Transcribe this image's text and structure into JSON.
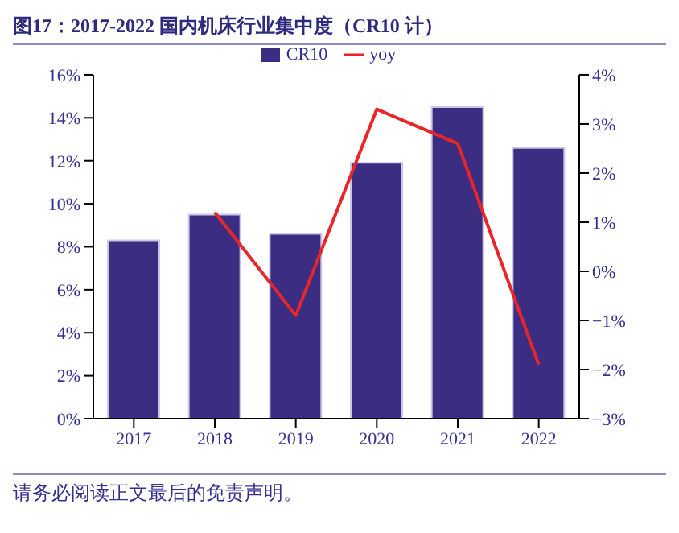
{
  "chart_data": {
    "type": "bar",
    "title": "图17：2017-2022 国内机床行业集中度（CR10 计）",
    "categories": [
      "2017",
      "2018",
      "2019",
      "2020",
      "2021",
      "2022"
    ],
    "series": [
      {
        "name": "CR10",
        "color": "#3b2e82",
        "values": [
          8.3,
          9.5,
          8.6,
          11.9,
          14.5,
          12.6
        ]
      },
      {
        "name": "yoy",
        "type": "line",
        "axis": "y2",
        "color": "#e8262a",
        "values": [
          null,
          1.2,
          -0.9,
          3.3,
          2.6,
          -1.9
        ]
      }
    ],
    "ylim": [
      0,
      16
    ],
    "yticks": [
      {
        "value": 0,
        "label": "0%"
      },
      {
        "value": 2,
        "label": "2%"
      },
      {
        "value": 4,
        "label": "4%"
      },
      {
        "value": 6,
        "label": "6%"
      },
      {
        "value": 8,
        "label": "8%"
      },
      {
        "value": 10,
        "label": "10%"
      },
      {
        "value": 12,
        "label": "12%"
      },
      {
        "value": 14,
        "label": "14%"
      },
      {
        "value": 16,
        "label": "16%"
      }
    ],
    "y2lim": [
      -3,
      4
    ],
    "y2ticks": [
      {
        "value": -3,
        "label": "−3%"
      },
      {
        "value": -2,
        "label": "−2%"
      },
      {
        "value": -1,
        "label": "−1%"
      },
      {
        "value": 0,
        "label": "0%"
      },
      {
        "value": 1,
        "label": "1%"
      },
      {
        "value": 2,
        "label": "2%"
      },
      {
        "value": 3,
        "label": "3%"
      },
      {
        "value": 4,
        "label": "4%"
      }
    ],
    "legend": "top",
    "grid": false,
    "marker": "none",
    "line_style": "solid",
    "annotations": [
      "请务必阅读正文最后的免责声明。"
    ]
  }
}
